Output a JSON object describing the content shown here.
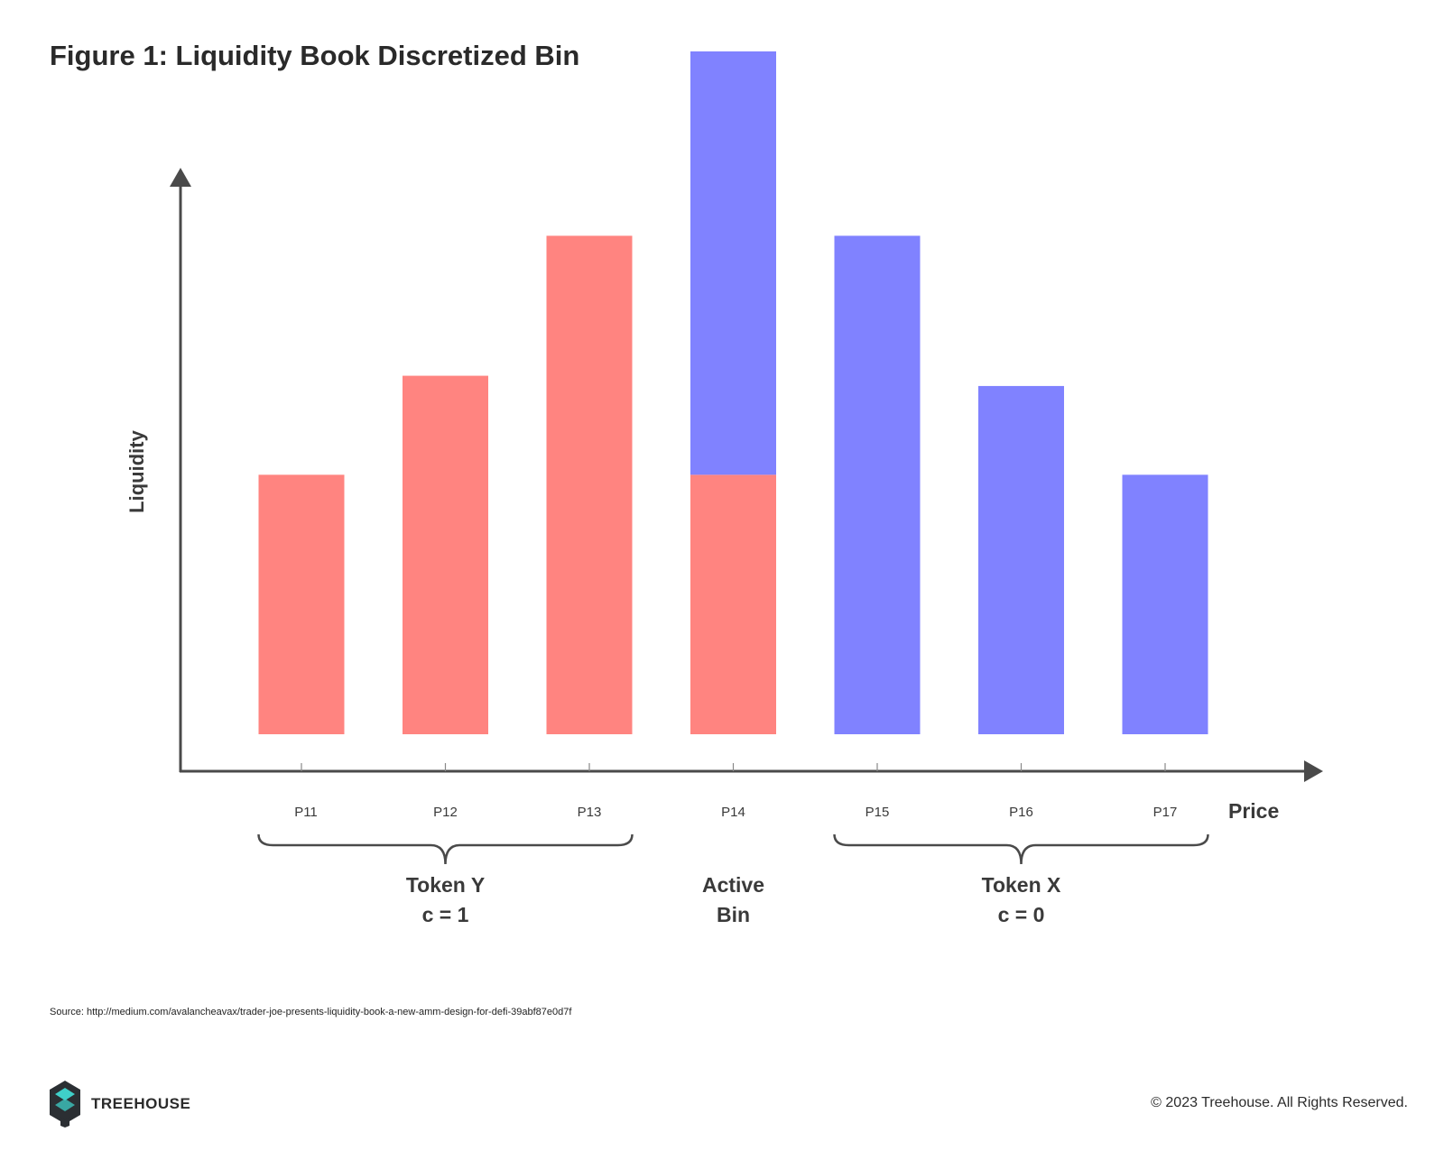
{
  "title": "Figure 1: Liquidity Book Discretized Bin",
  "source": "Source: http://medium.com/avalancheavax/trader-joe-presents-liquidity-book-a-new-amm-design-for-defi-39abf87e0d7f",
  "brand": {
    "name": "TREEHOUSE",
    "logo_icon": "treehouse-logo-icon"
  },
  "copyright": "© 2023 Treehouse. All Rights Reserved.",
  "colors": {
    "token_y": "#FF8480",
    "token_x": "#8082FF",
    "axis": "#4a4a4a",
    "text": "#2f2f2f"
  },
  "chart_data": {
    "type": "bar",
    "title": "",
    "xlabel": "Price",
    "ylabel": "Liquidity",
    "categories": [
      "P11",
      "P12",
      "P13",
      "P14",
      "P15",
      "P16",
      "P17"
    ],
    "series": [
      {
        "key": "token_y",
        "values": [
          38,
          52.5,
          73,
          38,
          0,
          0,
          0
        ]
      },
      {
        "key": "token_x",
        "values": [
          0,
          0,
          0,
          62,
          73,
          51,
          38
        ]
      }
    ],
    "ylim": [
      0,
      100
    ],
    "stacked": true,
    "grid": false,
    "legend": "none",
    "groups": [
      {
        "line1": "Token Y",
        "line2": "c = 1",
        "from": "P11",
        "to": "P13",
        "brace": true
      },
      {
        "line1": "Active",
        "line2": "Bin",
        "from": "P14",
        "to": "P14",
        "brace": false
      },
      {
        "line1": "Token X",
        "line2": "c = 0",
        "from": "P15",
        "to": "P17",
        "brace": true
      }
    ]
  }
}
